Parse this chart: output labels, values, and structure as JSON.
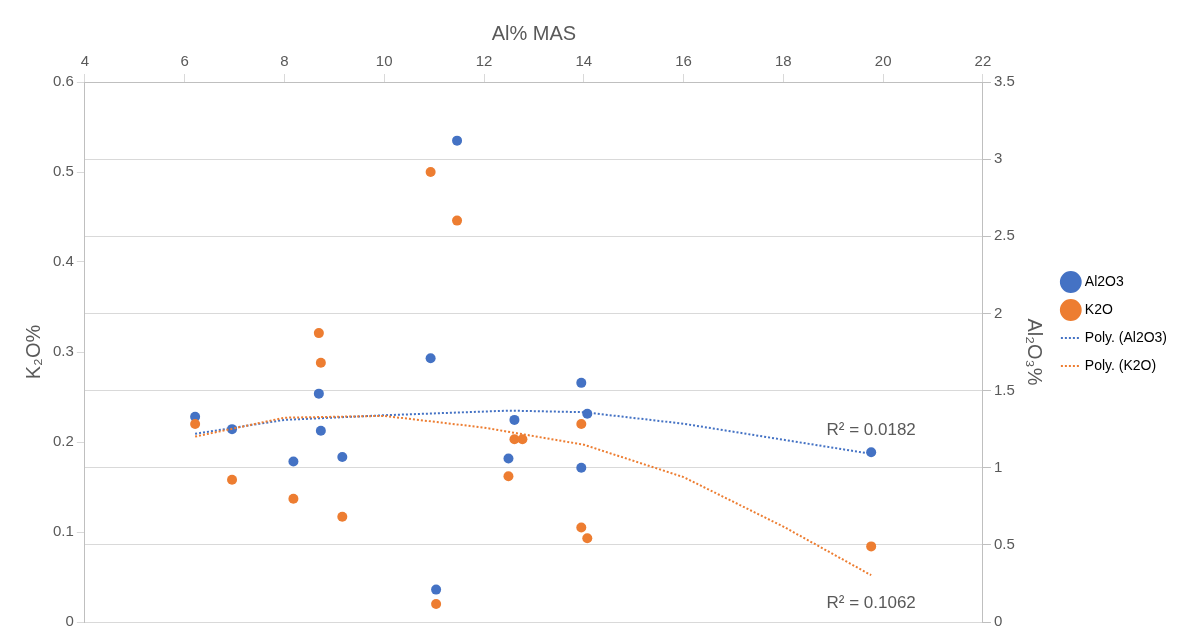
{
  "chart_data": {
    "type": "scatter",
    "xlabel": "Al% MAS",
    "ylabel": "K₂O%",
    "y2label": "Al₂O₃%",
    "xlim": [
      4,
      22
    ],
    "xticks": [
      4,
      6,
      8,
      10,
      12,
      14,
      16,
      18,
      20,
      22
    ],
    "ylim": [
      0,
      0.6
    ],
    "yticks": [
      0,
      0.1,
      0.2,
      0.3,
      0.4,
      0.5,
      0.6
    ],
    "y2lim": [
      0,
      3.5
    ],
    "y2ticks": [
      0,
      0.5,
      1,
      1.5,
      2,
      2.5,
      3,
      3.5
    ],
    "grid": "y2",
    "legend": "right",
    "marker": "circle",
    "series": [
      {
        "name": "Al2O3",
        "color": "#4472c4",
        "axis": "y2",
        "x": [
          6.21,
          6.95,
          8.69,
          8.73,
          8.18,
          9.16,
          10.93,
          11.46,
          11.04,
          12.49,
          12.61,
          13.95,
          14.07,
          13.95,
          19.76
        ],
        "values": [
          1.33,
          1.25,
          1.48,
          1.24,
          1.04,
          1.07,
          1.71,
          3.12,
          0.21,
          1.06,
          1.31,
          1.55,
          1.35,
          1.0,
          1.1
        ]
      },
      {
        "name": "K2O",
        "color": "#ed7d31",
        "x": [
          6.21,
          6.95,
          8.69,
          8.73,
          8.18,
          9.16,
          10.93,
          11.46,
          11.04,
          12.49,
          12.61,
          12.77,
          13.95,
          13.95,
          14.07,
          19.76
        ],
        "values": [
          0.22,
          0.158,
          0.321,
          0.288,
          0.137,
          0.117,
          0.5,
          0.446,
          0.02,
          0.162,
          0.203,
          0.203,
          0.22,
          0.105,
          0.093,
          0.084
        ]
      },
      {
        "name": "Poly. (Al2O3)",
        "type": "line",
        "color": "#4472c4",
        "axis": "y2",
        "marker": "none",
        "line_style": "dotted",
        "x": [
          6.21,
          8,
          10,
          12.5,
          14,
          16,
          19.76
        ],
        "values": [
          1.22,
          1.31,
          1.34,
          1.37,
          1.36,
          1.285,
          1.09
        ]
      },
      {
        "name": "Poly. (K2O)",
        "type": "line",
        "color": "#ed7d31",
        "marker": "none",
        "line_style": "dotted",
        "x": [
          6.21,
          8,
          10,
          12,
          14,
          16,
          18,
          19.76
        ],
        "values": [
          0.206,
          0.227,
          0.229,
          0.216,
          0.197,
          0.161,
          0.106,
          0.052
        ]
      }
    ],
    "annotations": [
      "R² = 0.0182",
      "R² = 0.1062"
    ]
  }
}
